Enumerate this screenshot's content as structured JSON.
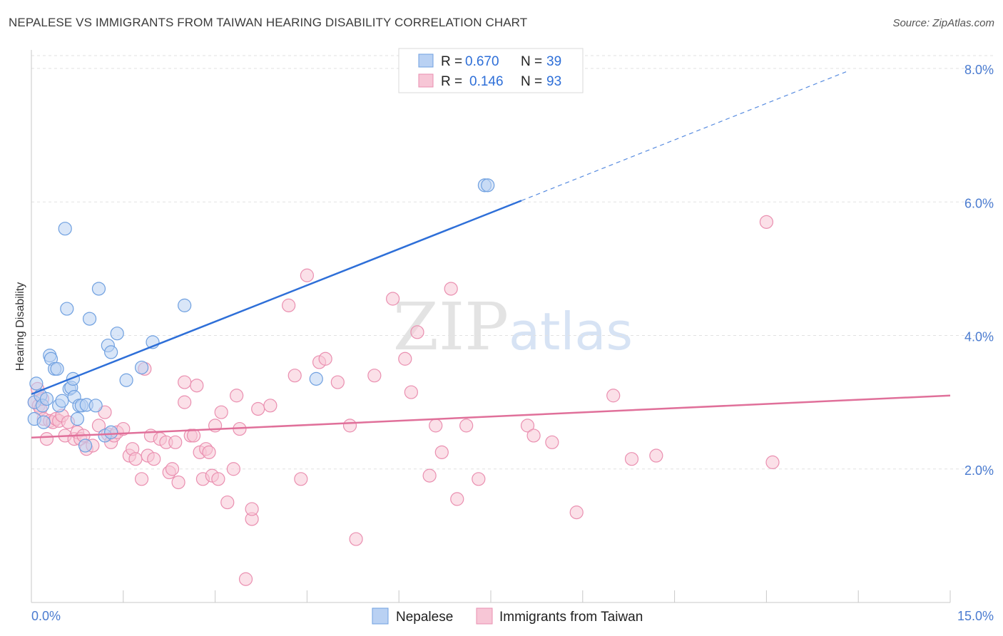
{
  "title": "NEPALESE VS IMMIGRANTS FROM TAIWAN HEARING DISABILITY CORRELATION CHART",
  "source": "Source: ZipAtlas.com",
  "watermark": {
    "zip": "ZIP",
    "atlas": "atlas"
  },
  "chart_data": {
    "type": "scatter",
    "title": "NEPALESE VS IMMIGRANTS FROM TAIWAN HEARING DISABILITY CORRELATION CHART",
    "xlabel": "",
    "ylabel": "Hearing Disability",
    "xlim": [
      0,
      15
    ],
    "ylim": [
      0,
      8.0
    ],
    "x_tick_labels": [
      "0.0%",
      "15.0%"
    ],
    "y_ticks": [
      2,
      4,
      6,
      8
    ],
    "y_tick_labels": [
      "2.0%",
      "4.0%",
      "6.0%",
      "8.0%"
    ],
    "grid": true,
    "legend": {
      "position": "top-center",
      "entries": [
        {
          "r_label": "R =",
          "r_value": "0.670",
          "n_label": "N =",
          "n_value": "39"
        },
        {
          "r_label": "R =",
          "r_value": "0.146",
          "n_label": "N =",
          "n_value": "93"
        }
      ]
    },
    "series": [
      {
        "name": "Nepalese",
        "color": "#6fa0e0",
        "fill": "#b9d1f3",
        "trend_color": "#2e6fd8",
        "trend": {
          "x0": 0.0,
          "y0": 3.12,
          "x1": 8.0,
          "y1": 6.02,
          "dash_to_x": 13.3,
          "dash_to_y": 7.95
        },
        "points": [
          [
            0.05,
            3.0
          ],
          [
            0.05,
            2.75
          ],
          [
            0.08,
            3.28
          ],
          [
            0.15,
            3.1
          ],
          [
            0.18,
            2.95
          ],
          [
            0.2,
            2.7
          ],
          [
            0.25,
            3.05
          ],
          [
            0.3,
            3.7
          ],
          [
            0.32,
            3.65
          ],
          [
            0.38,
            3.5
          ],
          [
            0.42,
            3.5
          ],
          [
            0.45,
            2.95
          ],
          [
            0.5,
            3.02
          ],
          [
            0.55,
            5.6
          ],
          [
            0.58,
            4.4
          ],
          [
            0.62,
            3.2
          ],
          [
            0.65,
            3.22
          ],
          [
            0.68,
            3.35
          ],
          [
            0.7,
            3.08
          ],
          [
            0.75,
            2.75
          ],
          [
            0.78,
            2.95
          ],
          [
            0.82,
            2.95
          ],
          [
            0.88,
            2.35
          ],
          [
            0.9,
            2.96
          ],
          [
            0.95,
            4.25
          ],
          [
            1.05,
            2.95
          ],
          [
            1.1,
            4.7
          ],
          [
            1.2,
            2.5
          ],
          [
            1.25,
            3.85
          ],
          [
            1.3,
            2.55
          ],
          [
            1.3,
            3.75
          ],
          [
            1.4,
            4.03
          ],
          [
            1.55,
            3.33
          ],
          [
            1.8,
            3.52
          ],
          [
            1.98,
            3.9
          ],
          [
            2.5,
            4.45
          ],
          [
            4.65,
            3.35
          ],
          [
            7.4,
            6.25
          ],
          [
            7.45,
            6.25
          ]
        ]
      },
      {
        "name": "Immigrants from Taiwan",
        "color": "#ea8fb0",
        "fill": "#f7c6d6",
        "trend_color": "#e0709a",
        "trend": {
          "x0": 0.0,
          "y0": 2.47,
          "x1": 15.0,
          "y1": 3.1
        },
        "points": [
          [
            0.05,
            3.0
          ],
          [
            0.1,
            3.2
          ],
          [
            0.12,
            2.95
          ],
          [
            0.15,
            2.9
          ],
          [
            0.18,
            3.05
          ],
          [
            0.2,
            2.75
          ],
          [
            0.25,
            2.45
          ],
          [
            0.3,
            2.72
          ],
          [
            0.35,
            2.7
          ],
          [
            0.4,
            2.75
          ],
          [
            0.45,
            2.72
          ],
          [
            0.5,
            2.8
          ],
          [
            0.55,
            2.5
          ],
          [
            0.6,
            2.7
          ],
          [
            0.7,
            2.45
          ],
          [
            0.75,
            2.55
          ],
          [
            0.8,
            2.45
          ],
          [
            0.85,
            2.5
          ],
          [
            0.9,
            2.3
          ],
          [
            1.0,
            2.35
          ],
          [
            1.1,
            2.65
          ],
          [
            1.2,
            2.85
          ],
          [
            1.25,
            2.52
          ],
          [
            1.3,
            2.4
          ],
          [
            1.35,
            2.5
          ],
          [
            1.4,
            2.55
          ],
          [
            1.5,
            2.6
          ],
          [
            1.6,
            2.2
          ],
          [
            1.65,
            2.3
          ],
          [
            1.7,
            2.15
          ],
          [
            1.8,
            1.85
          ],
          [
            1.85,
            3.5
          ],
          [
            1.9,
            2.2
          ],
          [
            1.95,
            2.5
          ],
          [
            2.0,
            2.15
          ],
          [
            2.1,
            2.45
          ],
          [
            2.2,
            2.4
          ],
          [
            2.25,
            1.95
          ],
          [
            2.3,
            2.0
          ],
          [
            2.35,
            2.4
          ],
          [
            2.4,
            1.8
          ],
          [
            2.5,
            3.3
          ],
          [
            2.5,
            3.0
          ],
          [
            2.6,
            2.5
          ],
          [
            2.65,
            2.5
          ],
          [
            2.7,
            3.25
          ],
          [
            2.75,
            2.25
          ],
          [
            2.8,
            1.85
          ],
          [
            2.85,
            2.3
          ],
          [
            2.9,
            2.25
          ],
          [
            2.95,
            1.9
          ],
          [
            3.0,
            2.65
          ],
          [
            3.05,
            1.85
          ],
          [
            3.1,
            2.85
          ],
          [
            3.2,
            1.5
          ],
          [
            3.3,
            2.0
          ],
          [
            3.35,
            3.1
          ],
          [
            3.4,
            2.6
          ],
          [
            3.5,
            0.35
          ],
          [
            3.6,
            1.25
          ],
          [
            3.6,
            1.4
          ],
          [
            3.7,
            2.9
          ],
          [
            3.9,
            2.95
          ],
          [
            4.2,
            4.45
          ],
          [
            4.3,
            3.4
          ],
          [
            4.4,
            1.85
          ],
          [
            4.5,
            4.9
          ],
          [
            4.7,
            3.6
          ],
          [
            4.8,
            3.65
          ],
          [
            5.0,
            3.3
          ],
          [
            5.2,
            2.65
          ],
          [
            5.3,
            0.95
          ],
          [
            5.6,
            3.4
          ],
          [
            5.9,
            4.55
          ],
          [
            6.1,
            3.65
          ],
          [
            6.2,
            3.15
          ],
          [
            6.3,
            4.05
          ],
          [
            6.5,
            1.9
          ],
          [
            6.6,
            2.65
          ],
          [
            6.7,
            2.25
          ],
          [
            6.85,
            4.7
          ],
          [
            6.95,
            1.55
          ],
          [
            7.1,
            2.65
          ],
          [
            7.3,
            1.85
          ],
          [
            8.1,
            2.65
          ],
          [
            8.2,
            2.5
          ],
          [
            8.5,
            2.4
          ],
          [
            8.9,
            1.35
          ],
          [
            9.5,
            3.1
          ],
          [
            9.8,
            2.15
          ],
          [
            10.2,
            2.2
          ],
          [
            12.0,
            5.7
          ],
          [
            12.1,
            2.1
          ]
        ]
      }
    ]
  }
}
